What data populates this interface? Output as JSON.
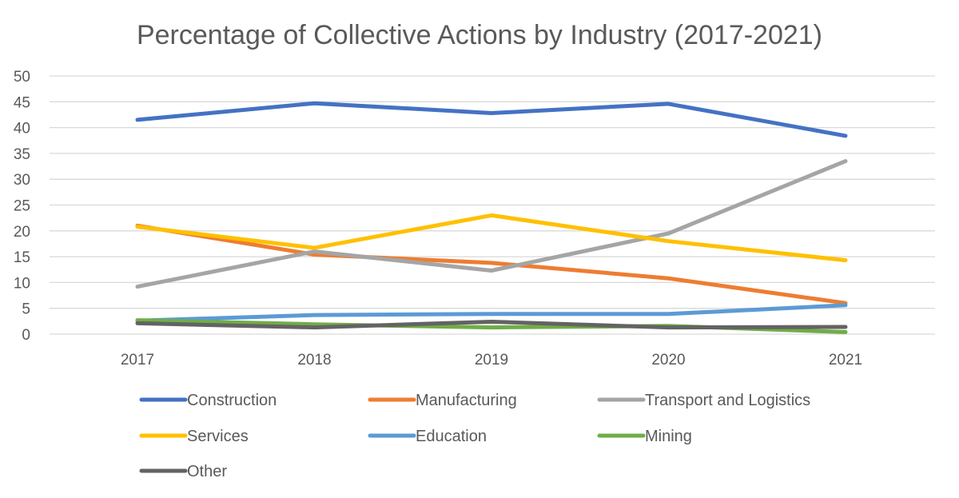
{
  "chart_data": {
    "type": "line",
    "title": "Percentage of Collective Actions by Industry (2017-2021)",
    "xlabel": "",
    "ylabel": "",
    "x": [
      "2017",
      "2018",
      "2019",
      "2020",
      "2021"
    ],
    "ylim": [
      0,
      50
    ],
    "yticks": [
      0,
      5,
      10,
      15,
      20,
      25,
      30,
      35,
      40,
      45,
      50
    ],
    "grid": true,
    "legend_position": "bottom",
    "series": [
      {
        "name": "Construction",
        "color": "#4472C4",
        "values": [
          41.5,
          44.7,
          42.8,
          44.6,
          38.4
        ]
      },
      {
        "name": "Manufacturing",
        "color": "#ED7D31",
        "values": [
          21.0,
          15.4,
          13.8,
          10.8,
          6.0
        ]
      },
      {
        "name": "Transport and Logistics",
        "color": "#A5A5A5",
        "values": [
          9.2,
          16.0,
          12.3,
          19.5,
          33.5
        ]
      },
      {
        "name": "Services",
        "color": "#FFC000",
        "values": [
          20.8,
          16.7,
          23.0,
          18.0,
          14.3
        ]
      },
      {
        "name": "Education",
        "color": "#5B9BD5",
        "values": [
          2.6,
          3.7,
          3.9,
          3.9,
          5.6
        ]
      },
      {
        "name": "Mining",
        "color": "#70AD47",
        "values": [
          2.7,
          1.9,
          1.3,
          1.6,
          0.4
        ]
      },
      {
        "name": "Other",
        "color": "#636363",
        "values": [
          2.1,
          1.3,
          2.4,
          1.3,
          1.4
        ]
      }
    ]
  }
}
